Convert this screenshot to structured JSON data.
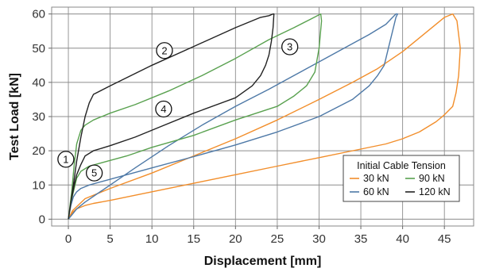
{
  "chart_data": {
    "type": "line",
    "xlabel": "Displacement [mm]",
    "ylabel": "Test Load [kN]",
    "xlim": [
      -2,
      48.5
    ],
    "ylim": [
      -2,
      62
    ],
    "xticks": [
      0,
      5,
      10,
      15,
      20,
      25,
      30,
      35,
      40,
      45
    ],
    "yticks": [
      0,
      10,
      20,
      30,
      40,
      50,
      60
    ],
    "grid": true,
    "legend": {
      "title": "Initial Cable Tension",
      "placement": "bottom-right",
      "entries": [
        "30 kN",
        "60 kN",
        "90 kN",
        "120 kN"
      ]
    },
    "series": [
      {
        "name": "30 kN",
        "color": "#f28e2b",
        "x": [
          0,
          0.5,
          1,
          2,
          3,
          5,
          8,
          12,
          16,
          20,
          25,
          30,
          35,
          38,
          40,
          42,
          44,
          45,
          46,
          46.4,
          46.7,
          46.9,
          46.5,
          46,
          45,
          44,
          43,
          42,
          40,
          37,
          34,
          30,
          25,
          20,
          15,
          10,
          5,
          2,
          0.5,
          0
        ],
        "y": [
          0,
          2,
          3,
          4,
          4.6,
          5.5,
          7,
          9,
          11,
          13,
          15.5,
          18,
          20.5,
          22,
          23.5,
          25.5,
          28.5,
          30.5,
          33,
          37,
          42,
          50,
          58,
          60,
          59,
          57,
          55,
          53,
          49,
          44,
          40,
          35,
          29,
          23.5,
          18.5,
          13.5,
          9,
          6,
          2.5,
          0
        ]
      },
      {
        "name": "60 kN",
        "color": "#4e79a7",
        "x": [
          0,
          0.3,
          0.6,
          1,
          1.5,
          2.5,
          4,
          7,
          10,
          15,
          20,
          25,
          30,
          34,
          36,
          37,
          37.8,
          38.3,
          38.8,
          39.2,
          39.4,
          39.2,
          38.8,
          38,
          36,
          33,
          30,
          27,
          24,
          20,
          16,
          12,
          8,
          5,
          2,
          1,
          0.5,
          0
        ],
        "y": [
          0,
          4,
          6.5,
          8,
          9,
          10,
          11,
          13,
          15,
          18.3,
          21.7,
          25.5,
          30,
          35,
          39,
          42,
          45,
          50,
          55,
          59,
          60,
          60,
          59,
          57,
          54,
          50,
          46,
          42,
          38,
          33,
          27.5,
          21.5,
          15,
          10,
          5,
          3,
          1.5,
          0
        ]
      },
      {
        "name": "90 kN",
        "color": "#59a14f",
        "x": [
          0,
          0.3,
          0.7,
          1,
          1.5,
          2.5,
          4,
          7,
          10,
          15,
          20,
          25,
          27,
          28.5,
          29.5,
          30,
          30.3,
          30.2,
          29.8,
          29,
          27,
          24,
          20,
          16,
          12,
          8,
          5,
          3,
          2,
          1.5,
          1,
          0.7,
          0.4,
          0
        ],
        "y": [
          0,
          5,
          9,
          12,
          14,
          15.5,
          16.5,
          18.5,
          21,
          24.5,
          29,
          33,
          36,
          39,
          43,
          50,
          58,
          60,
          59.5,
          58.5,
          56,
          52.5,
          47,
          42,
          37.5,
          33.5,
          31,
          29,
          27.5,
          26,
          22,
          16,
          8,
          0
        ]
      },
      {
        "name": "120 kN",
        "color": "#222222",
        "x": [
          0,
          0.3,
          0.7,
          1,
          1.5,
          2,
          3,
          5,
          8,
          11,
          15,
          20,
          22,
          23,
          23.6,
          24,
          24.3,
          24.5,
          24.6,
          24.5,
          24,
          23,
          20,
          15,
          10,
          5,
          3,
          2.5,
          2,
          1.5,
          1,
          0.6,
          0.3,
          0
        ],
        "y": [
          0,
          5,
          10,
          13,
          16,
          18.5,
          20,
          21.5,
          24,
          27,
          31,
          35.5,
          39,
          42,
          45,
          48,
          52,
          56,
          60,
          60,
          59.5,
          59,
          56,
          50.5,
          45,
          39,
          36.5,
          34,
          30,
          24,
          17,
          10,
          5,
          0
        ]
      }
    ],
    "annotations": [
      {
        "label": "1",
        "x": -0.3,
        "y": 17.5
      },
      {
        "label": "2",
        "x": 11.5,
        "y": 49.3
      },
      {
        "label": "3",
        "x": 26.5,
        "y": 50.4
      },
      {
        "label": "4",
        "x": 11.4,
        "y": 32.2
      },
      {
        "label": "5",
        "x": 3.1,
        "y": 13.5
      }
    ]
  }
}
